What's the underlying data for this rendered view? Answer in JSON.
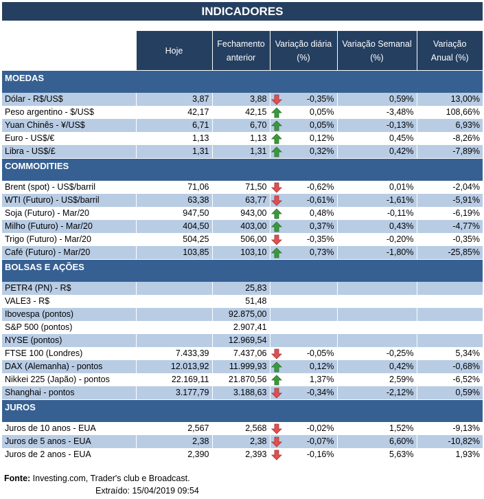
{
  "title": "INDICADORES",
  "headers": [
    "Hoje",
    "Fechamento anterior",
    "Variação diária (%)",
    "Variação Semanal (%)",
    "Variação Anual (%)"
  ],
  "colors": {
    "header": "#243f60",
    "section": "#366092",
    "band": "#b8cce4",
    "up": "#3a9a3a",
    "down": "#e05050"
  },
  "sections": [
    {
      "name": "MOEDAS",
      "rows": [
        {
          "label": "Dólar - R$/US$",
          "hoje": "3,87",
          "fech": "3,88",
          "dir": "down",
          "dia": "-0,35%",
          "sem": "0,59%",
          "anual": "13,00%"
        },
        {
          "label": "Peso argentino - $/US$",
          "hoje": "42,17",
          "fech": "42,15",
          "dir": "up",
          "dia": "0,05%",
          "sem": "-3,48%",
          "anual": "108,66%"
        },
        {
          "label": "Yuan Chinês - ¥/US$",
          "hoje": "6,71",
          "fech": "6,70",
          "dir": "up",
          "dia": "0,05%",
          "sem": "-0,13%",
          "anual": "6,93%"
        },
        {
          "label": "Euro - US$/€",
          "hoje": "1,13",
          "fech": "1,13",
          "dir": "up",
          "dia": "0,12%",
          "sem": "0,45%",
          "anual": "-8,26%"
        },
        {
          "label": "Libra - US$/£",
          "hoje": "1,31",
          "fech": "1,31",
          "dir": "up",
          "dia": "0,32%",
          "sem": "0,42%",
          "anual": "-7,89%"
        }
      ]
    },
    {
      "name": "COMMODITIES",
      "rows": [
        {
          "label": "Brent (spot) - US$/barril",
          "hoje": "71,06",
          "fech": "71,50",
          "dir": "down",
          "dia": "-0,62%",
          "sem": "0,01%",
          "anual": "-2,04%"
        },
        {
          "label": "WTI (Futuro) - US$/barril",
          "hoje": "63,38",
          "fech": "63,77",
          "dir": "down",
          "dia": "-0,61%",
          "sem": "-1,61%",
          "anual": "-5,91%"
        },
        {
          "label": "Soja (Futuro) - Mar/20",
          "hoje": "947,50",
          "fech": "943,00",
          "dir": "up",
          "dia": "0,48%",
          "sem": "-0,11%",
          "anual": "-6,19%"
        },
        {
          "label": "Milho (Futuro) - Mar/20",
          "hoje": "404,50",
          "fech": "403,00",
          "dir": "up",
          "dia": "0,37%",
          "sem": "0,43%",
          "anual": "-4,77%"
        },
        {
          "label": "Trigo (Futuro) - Mar/20",
          "hoje": "504,25",
          "fech": "506,00",
          "dir": "down",
          "dia": "-0,35%",
          "sem": "-0,20%",
          "anual": "-0,35%"
        },
        {
          "label": "Café (Futuro) - Mar/20",
          "hoje": "103,85",
          "fech": "103,10",
          "dir": "up",
          "dia": "0,73%",
          "sem": "-1,80%",
          "anual": "-25,85%"
        }
      ]
    },
    {
      "name": "BOLSAS E AÇÕES",
      "rows": [
        {
          "label": "PETR4 (PN) - R$",
          "hoje": "",
          "fech": "25,83",
          "dir": "",
          "dia": "",
          "sem": "",
          "anual": ""
        },
        {
          "label": "VALE3 - R$",
          "hoje": "",
          "fech": "51,48",
          "dir": "",
          "dia": "",
          "sem": "",
          "anual": ""
        },
        {
          "label": "Ibovespa (pontos)",
          "hoje": "",
          "fech": "92.875,00",
          "dir": "",
          "dia": "",
          "sem": "",
          "anual": ""
        },
        {
          "label": "S&P 500 (pontos)",
          "hoje": "",
          "fech": "2.907,41",
          "dir": "",
          "dia": "",
          "sem": "",
          "anual": ""
        },
        {
          "label": "NYSE (pontos)",
          "hoje": "",
          "fech": "12.969,54",
          "dir": "",
          "dia": "",
          "sem": "",
          "anual": ""
        },
        {
          "label": "FTSE 100 (Londres)",
          "hoje": "7.433,39",
          "fech": "7.437,06",
          "dir": "down",
          "dia": "-0,05%",
          "sem": "-0,25%",
          "anual": "5,34%"
        },
        {
          "label": "DAX (Alemanha) - pontos",
          "hoje": "12.013,92",
          "fech": "11.999,93",
          "dir": "up",
          "dia": "0,12%",
          "sem": "0,42%",
          "anual": "-0,68%"
        },
        {
          "label": "Nikkei 225 (Japão) - pontos",
          "hoje": "22.169,11",
          "fech": "21.870,56",
          "dir": "up",
          "dia": "1,37%",
          "sem": "2,59%",
          "anual": "-6,52%"
        },
        {
          "label": "Shanghai - pontos",
          "hoje": "3.177,79",
          "fech": "3.188,63",
          "dir": "down",
          "dia": "-0,34%",
          "sem": "-2,12%",
          "anual": "0,59%"
        }
      ]
    },
    {
      "name": "JUROS",
      "rows": [
        {
          "label": "Juros de 10 anos - EUA",
          "hoje": "2,567",
          "fech": "2,568",
          "dir": "down",
          "dia": "-0,02%",
          "sem": "1,52%",
          "anual": "-9,13%"
        },
        {
          "label": "Juros de 5 anos - EUA",
          "hoje": "2,38",
          "fech": "2,38",
          "dir": "down",
          "dia": "-0,07%",
          "sem": "6,60%",
          "anual": "-10,82%"
        },
        {
          "label": "Juros de 2 anos - EUA",
          "hoje": "2,390",
          "fech": "2,393",
          "dir": "down",
          "dia": "-0,16%",
          "sem": "5,63%",
          "anual": "1,93%"
        }
      ]
    }
  ],
  "footer": {
    "source_label": "Fonte:",
    "source": " Investing.com, Trader's club e Broadcast.",
    "extracted": "Extraído:   15/04/2019 09:54"
  }
}
